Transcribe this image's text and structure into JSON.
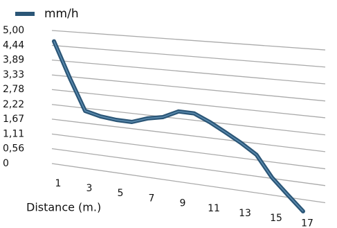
{
  "chart_data": {
    "type": "line",
    "x_label": "Distance (m.)",
    "x": [
      1,
      2,
      3,
      4,
      5,
      6,
      7,
      8,
      9,
      10,
      11,
      12,
      13,
      14,
      15,
      16,
      17
    ],
    "xlim": [
      1,
      17
    ],
    "xticks": [
      1,
      3,
      5,
      7,
      9,
      11,
      13,
      15,
      17
    ],
    "series": [
      {
        "name": "mm/h",
        "color": "#2b5677",
        "values": [
          4.6,
          3.3,
          2.12,
          1.98,
          1.92,
          1.91,
          2.1,
          2.21,
          2.47,
          2.46,
          2.22,
          1.93,
          1.63,
          1.29,
          0.59,
          0.09,
          -0.39
        ]
      }
    ],
    "ylim": [
      0,
      5
    ],
    "yticks": [
      {
        "value": 5,
        "label": "5,00"
      },
      {
        "value": 4.44,
        "label": "4,44"
      },
      {
        "value": 3.89,
        "label": "3,89"
      },
      {
        "value": 3.33,
        "label": "3,33"
      },
      {
        "value": 2.78,
        "label": "2,78"
      },
      {
        "value": 2.22,
        "label": "2,22"
      },
      {
        "value": 1.67,
        "label": "1,67"
      },
      {
        "value": 1.11,
        "label": "1,11"
      },
      {
        "value": 0.56,
        "label": "0,56"
      },
      0
    ],
    "grid": true,
    "legend": "top-left"
  }
}
